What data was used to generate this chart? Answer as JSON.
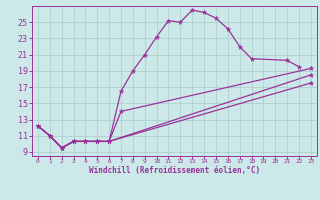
{
  "xlabel": "Windchill (Refroidissement éolien,°C)",
  "bg_color": "#cce8e8",
  "grid_color": "#aacccc",
  "line_color": "#993399",
  "xlim": [
    -0.5,
    23.5
  ],
  "ylim": [
    8.5,
    27
  ],
  "xticks": [
    0,
    1,
    2,
    3,
    4,
    5,
    6,
    7,
    8,
    9,
    10,
    11,
    12,
    13,
    14,
    15,
    16,
    17,
    18,
    19,
    20,
    21,
    22,
    23
  ],
  "yticks": [
    9,
    11,
    13,
    15,
    17,
    19,
    21,
    23,
    25
  ],
  "curve1_x": [
    0,
    1,
    2,
    3,
    4,
    5,
    6,
    7,
    8,
    9,
    10,
    11,
    12,
    13,
    14,
    15,
    16,
    17,
    18,
    21,
    22
  ],
  "curve1_y": [
    12.2,
    11.0,
    9.5,
    10.3,
    10.3,
    10.3,
    10.3,
    16.5,
    19.0,
    21.0,
    23.2,
    25.2,
    25.0,
    26.5,
    26.2,
    25.5,
    24.2,
    22.0,
    20.5,
    20.3,
    19.5
  ],
  "curve2_x": [
    0,
    1,
    2,
    3,
    4,
    5,
    6,
    7,
    23
  ],
  "curve2_y": [
    12.2,
    11.0,
    9.5,
    10.3,
    10.3,
    10.3,
    10.3,
    14.0,
    19.3
  ],
  "curve3_x": [
    0,
    1,
    2,
    3,
    4,
    5,
    6,
    23
  ],
  "curve3_y": [
    12.2,
    11.0,
    9.5,
    10.3,
    10.3,
    10.3,
    10.3,
    17.5
  ],
  "curve4_x": [
    0,
    1,
    2,
    3,
    4,
    5,
    6,
    23
  ],
  "curve4_y": [
    12.2,
    11.0,
    9.5,
    10.3,
    10.3,
    10.3,
    10.3,
    18.5
  ],
  "marker": "*",
  "markersize": 3.5,
  "linewidth": 0.9,
  "xlabel_fontsize": 5.5,
  "xtick_fontsize": 4.5,
  "ytick_fontsize": 6.0
}
